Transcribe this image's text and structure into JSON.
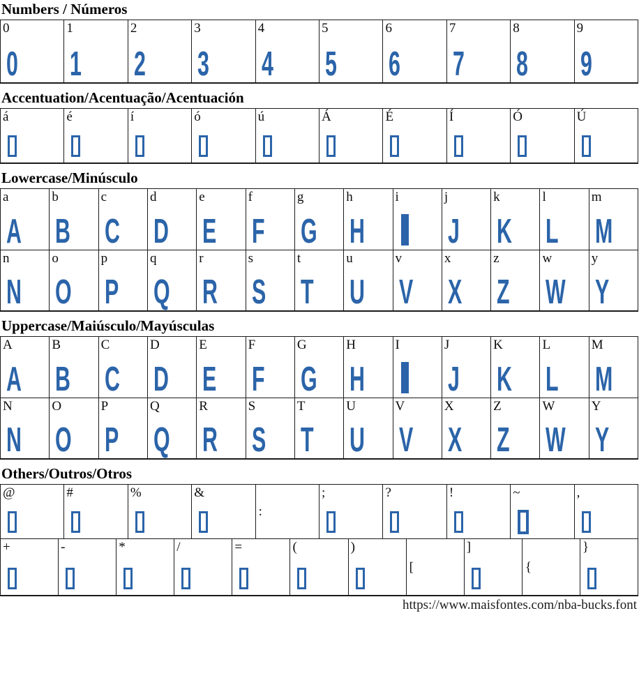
{
  "colors": {
    "accent": "#2b64a9",
    "grid": "#1b1b1b"
  },
  "footer": {
    "url": "https://www.maisfontes.com/nba-bucks.font"
  },
  "sections": [
    {
      "title": "Numbers / Números",
      "rows": [
        {
          "cells": [
            {
              "label": "0",
              "glyph": "0",
              "type": "glyph"
            },
            {
              "label": "1",
              "glyph": "1",
              "type": "glyph"
            },
            {
              "label": "2",
              "glyph": "2",
              "type": "glyph"
            },
            {
              "label": "3",
              "glyph": "3",
              "type": "glyph"
            },
            {
              "label": "4",
              "glyph": "4",
              "type": "glyph"
            },
            {
              "label": "5",
              "glyph": "5",
              "type": "glyph"
            },
            {
              "label": "6",
              "glyph": "6",
              "type": "glyph"
            },
            {
              "label": "7",
              "glyph": "7",
              "type": "glyph"
            },
            {
              "label": "8",
              "glyph": "8",
              "type": "glyph"
            },
            {
              "label": "9",
              "glyph": "9",
              "type": "glyph"
            }
          ]
        }
      ]
    },
    {
      "title": "Accentuation/Acentuação/Acentuación",
      "rows": [
        {
          "cells": [
            {
              "label": "á",
              "type": "tofu"
            },
            {
              "label": "é",
              "type": "tofu"
            },
            {
              "label": "í",
              "type": "tofu"
            },
            {
              "label": "ó",
              "type": "tofu"
            },
            {
              "label": "ú",
              "type": "tofu"
            },
            {
              "label": "Á",
              "type": "tofu"
            },
            {
              "label": "É",
              "type": "tofu"
            },
            {
              "label": "Í",
              "type": "tofu"
            },
            {
              "label": "Ó",
              "type": "tofu"
            },
            {
              "label": "Ú",
              "type": "tofu"
            }
          ]
        }
      ]
    },
    {
      "title": "Lowercase/Minúsculo",
      "rows": [
        {
          "cells": [
            {
              "label": "a",
              "glyph": "A",
              "type": "glyph"
            },
            {
              "label": "b",
              "glyph": "B",
              "type": "glyph"
            },
            {
              "label": "c",
              "glyph": "C",
              "type": "glyph"
            },
            {
              "label": "d",
              "glyph": "D",
              "type": "glyph"
            },
            {
              "label": "e",
              "glyph": "E",
              "type": "glyph"
            },
            {
              "label": "f",
              "glyph": "F",
              "type": "glyph"
            },
            {
              "label": "g",
              "glyph": "G",
              "type": "glyph"
            },
            {
              "label": "h",
              "glyph": "H",
              "type": "glyph"
            },
            {
              "label": "i",
              "glyph": "I",
              "type": "bar"
            },
            {
              "label": "j",
              "glyph": "J",
              "type": "glyph"
            },
            {
              "label": "k",
              "glyph": "K",
              "type": "glyph"
            },
            {
              "label": "l",
              "glyph": "L",
              "type": "glyph"
            },
            {
              "label": "m",
              "glyph": "M",
              "type": "glyph"
            }
          ]
        },
        {
          "cells": [
            {
              "label": "n",
              "glyph": "N",
              "type": "glyph"
            },
            {
              "label": "o",
              "glyph": "O",
              "type": "glyph"
            },
            {
              "label": "p",
              "glyph": "P",
              "type": "glyph"
            },
            {
              "label": "q",
              "glyph": "Q",
              "type": "glyph"
            },
            {
              "label": "r",
              "glyph": "R",
              "type": "glyph"
            },
            {
              "label": "s",
              "glyph": "S",
              "type": "glyph"
            },
            {
              "label": "t",
              "glyph": "T",
              "type": "glyph"
            },
            {
              "label": "u",
              "glyph": "U",
              "type": "glyph"
            },
            {
              "label": "v",
              "glyph": "V",
              "type": "glyph"
            },
            {
              "label": "x",
              "glyph": "X",
              "type": "glyph"
            },
            {
              "label": "z",
              "glyph": "Z",
              "type": "glyph"
            },
            {
              "label": "w",
              "glyph": "W",
              "type": "glyph"
            },
            {
              "label": "y",
              "glyph": "Y",
              "type": "glyph"
            }
          ]
        }
      ]
    },
    {
      "title": "Uppercase/Maiúsculo/Mayúsculas",
      "rows": [
        {
          "cells": [
            {
              "label": "A",
              "glyph": "A",
              "type": "glyph"
            },
            {
              "label": "B",
              "glyph": "B",
              "type": "glyph"
            },
            {
              "label": "C",
              "glyph": "C",
              "type": "glyph"
            },
            {
              "label": "D",
              "glyph": "D",
              "type": "glyph"
            },
            {
              "label": "E",
              "glyph": "E",
              "type": "glyph"
            },
            {
              "label": "F",
              "glyph": "F",
              "type": "glyph"
            },
            {
              "label": "G",
              "glyph": "G",
              "type": "glyph"
            },
            {
              "label": "H",
              "glyph": "H",
              "type": "glyph"
            },
            {
              "label": "I",
              "glyph": "I",
              "type": "bar"
            },
            {
              "label": "J",
              "glyph": "J",
              "type": "glyph"
            },
            {
              "label": "K",
              "glyph": "K",
              "type": "glyph"
            },
            {
              "label": "L",
              "glyph": "L",
              "type": "glyph"
            },
            {
              "label": "M",
              "glyph": "M",
              "type": "glyph"
            }
          ]
        },
        {
          "cells": [
            {
              "label": "N",
              "glyph": "N",
              "type": "glyph"
            },
            {
              "label": "O",
              "glyph": "O",
              "type": "glyph"
            },
            {
              "label": "P",
              "glyph": "P",
              "type": "glyph"
            },
            {
              "label": "Q",
              "glyph": "Q",
              "type": "glyph"
            },
            {
              "label": "R",
              "glyph": "R",
              "type": "glyph"
            },
            {
              "label": "S",
              "glyph": "S",
              "type": "glyph"
            },
            {
              "label": "T",
              "glyph": "T",
              "type": "glyph"
            },
            {
              "label": "U",
              "glyph": "U",
              "type": "glyph"
            },
            {
              "label": "V",
              "glyph": "V",
              "type": "glyph"
            },
            {
              "label": "X",
              "glyph": "X",
              "type": "glyph"
            },
            {
              "label": "Z",
              "glyph": "Z",
              "type": "glyph"
            },
            {
              "label": "W",
              "glyph": "W",
              "type": "glyph"
            },
            {
              "label": "Y",
              "glyph": "Y",
              "type": "glyph"
            }
          ]
        }
      ]
    },
    {
      "title": "Others/Outros/Otros",
      "rows": [
        {
          "cells": [
            {
              "label": "@",
              "type": "tofu"
            },
            {
              "label": "#",
              "type": "tofu"
            },
            {
              "label": "%",
              "type": "tofu"
            },
            {
              "label": "&",
              "type": "tofu"
            },
            {
              "label": ":",
              "type": "none"
            },
            {
              "label": ";",
              "type": "tofu"
            },
            {
              "label": "?",
              "type": "tofu"
            },
            {
              "label": "!",
              "type": "tofu"
            },
            {
              "label": "~",
              "type": "tofu-big"
            },
            {
              "label": ",",
              "type": "tofu"
            }
          ]
        },
        {
          "cells": [
            {
              "label": "+",
              "type": "tofu"
            },
            {
              "label": "-",
              "type": "tofu"
            },
            {
              "label": "*",
              "type": "tofu"
            },
            {
              "label": "/",
              "type": "tofu"
            },
            {
              "label": "=",
              "type": "tofu"
            },
            {
              "label": "(",
              "type": "tofu"
            },
            {
              "label": ")",
              "type": "tofu"
            },
            {
              "label": "[",
              "type": "none"
            },
            {
              "label": "]",
              "type": "tofu"
            },
            {
              "label": "{",
              "type": "none"
            },
            {
              "label": "}",
              "type": "tofu"
            }
          ]
        }
      ]
    }
  ]
}
